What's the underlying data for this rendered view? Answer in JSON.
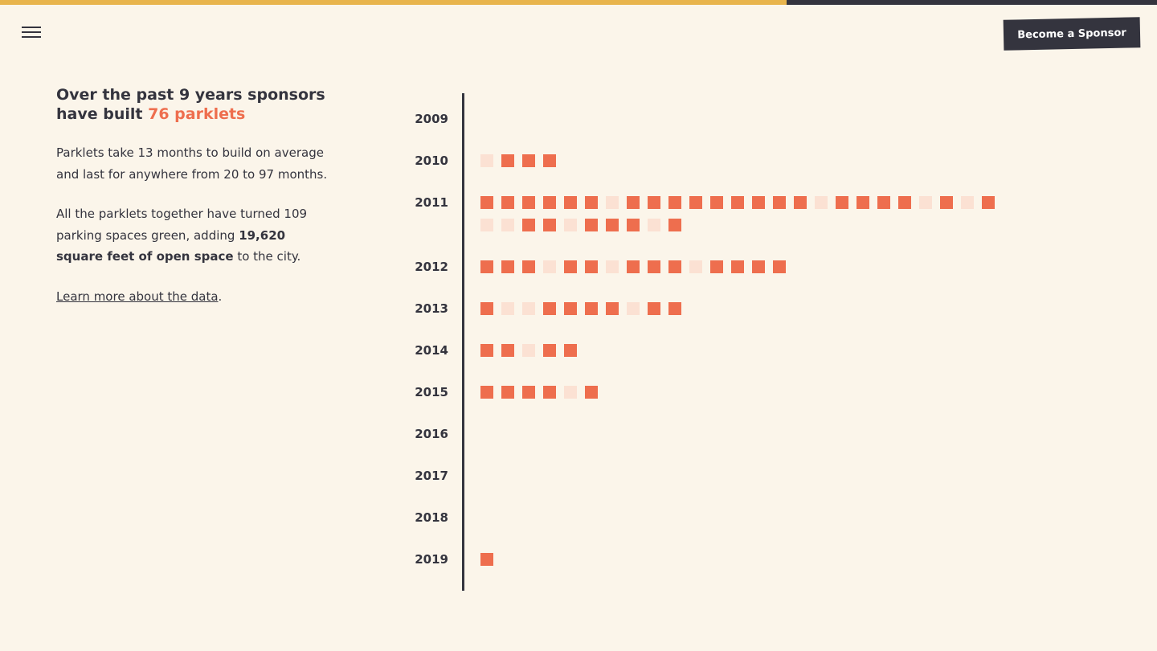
{
  "header": {
    "menu_icon": "hamburger-menu-icon",
    "sponsor_button_label": "Become a Sponsor",
    "scroll_progress": 0.68,
    "colors": {
      "progress_fill": "#e8b44c",
      "progress_track": "#34343e"
    }
  },
  "intro": {
    "headline_part1": "Over the past 9 years sponsors have built ",
    "headline_accent": "76 parklets",
    "para1": "Parklets take 13 months to build on average and last for anywhere from 20 to 97 months.",
    "para2_part1": "All the parklets together have turned 109 parking spaces green, adding ",
    "para2_bold": "19,620 square feet of open space",
    "para2_part2": " to the city.",
    "link_text": "Learn more about the data",
    "link_suffix": "."
  },
  "chart_data": {
    "type": "unit",
    "years": [
      "2009",
      "2010",
      "2011",
      "2012",
      "2013",
      "2014",
      "2015",
      "2016",
      "2017",
      "2018",
      "2019"
    ],
    "rows": [
      [],
      [
        0,
        1,
        1,
        1
      ],
      [
        1,
        1,
        1,
        1,
        1,
        1,
        0,
        1,
        1,
        1,
        1,
        1,
        1,
        1,
        1,
        1,
        0,
        1,
        1,
        1,
        1,
        0,
        1,
        0,
        1,
        0,
        0,
        1,
        1,
        0,
        1,
        1,
        1,
        0,
        1
      ],
      [
        1,
        1,
        1,
        0,
        1,
        1,
        0,
        1,
        1,
        1,
        0,
        1,
        1,
        1,
        1
      ],
      [
        1,
        0,
        0,
        1,
        1,
        1,
        1,
        0,
        1,
        1
      ],
      [
        1,
        1,
        0,
        1,
        1
      ],
      [
        1,
        1,
        1,
        1,
        0,
        1
      ],
      [],
      [],
      [],
      [
        1
      ]
    ],
    "colors": {
      "filled": "#ee6e4e",
      "light": "#fbe1d3"
    }
  }
}
